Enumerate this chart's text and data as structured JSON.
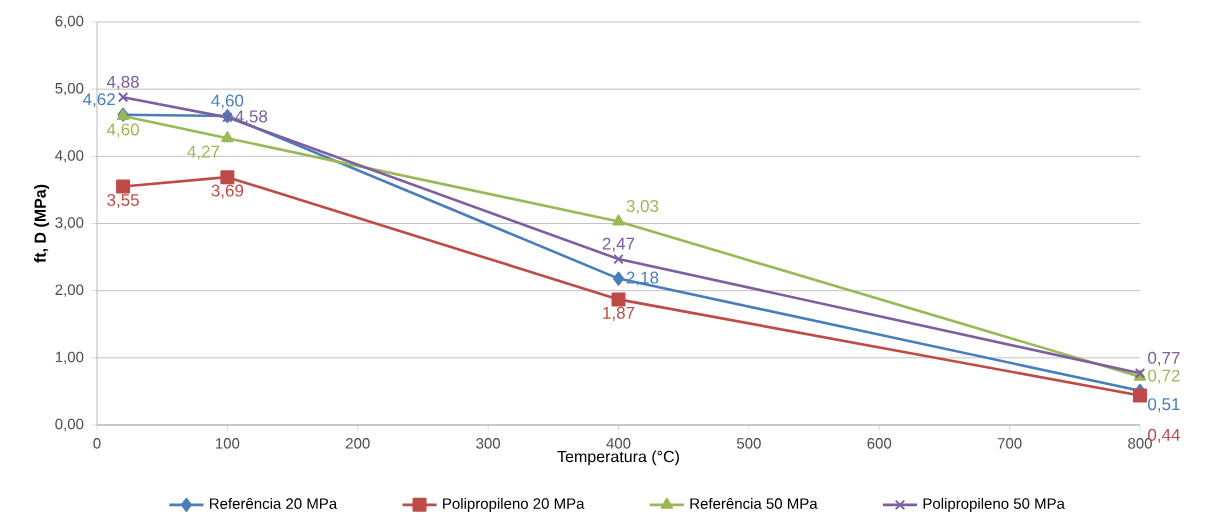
{
  "chart_data": {
    "type": "line",
    "xlabel": "Temperatura (°C)",
    "ylabel": "ft, D (MPa)",
    "x": [
      20,
      100,
      400,
      800
    ],
    "xlim": [
      0,
      800
    ],
    "xticks": [
      0,
      100,
      200,
      300,
      400,
      500,
      600,
      700,
      800
    ],
    "ylim": [
      0,
      6
    ],
    "yticks": [
      {
        "value": 0,
        "label": "0,00"
      },
      {
        "value": 1,
        "label": "1,00"
      },
      {
        "value": 2,
        "label": "2,00"
      },
      {
        "value": 3,
        "label": "3,00"
      },
      {
        "value": 4,
        "label": "4,00"
      },
      {
        "value": 5,
        "label": "5,00"
      },
      {
        "value": 6,
        "label": "6,00"
      }
    ],
    "grid": "y",
    "legend": "bottom",
    "series": [
      {
        "name": "Referência 20 MPa",
        "color": "#4a7ebb",
        "marker": "diamond",
        "values": [
          4.62,
          4.6,
          2.18,
          0.51
        ],
        "value_labels": [
          "4,62",
          "4,60",
          "2,18",
          "0,51"
        ]
      },
      {
        "name": "Polipropileno 20 MPa",
        "color": "#be4b48",
        "marker": "square",
        "values": [
          3.55,
          3.69,
          1.87,
          0.44
        ],
        "value_labels": [
          "3,55",
          "3,69",
          "1,87",
          "0,44"
        ]
      },
      {
        "name": "Referência 50 MPa",
        "color": "#98b954",
        "marker": "triangle",
        "values": [
          4.6,
          4.27,
          3.03,
          0.72
        ],
        "value_labels": [
          "4,60",
          "4,27",
          "3,03",
          "0,72"
        ]
      },
      {
        "name": "Polipropileno 50 MPa",
        "color": "#7d5fa0",
        "marker": "cross",
        "values": [
          4.88,
          4.58,
          2.47,
          0.77
        ],
        "value_labels": [
          "4,88",
          "4,58",
          "2,47",
          "0,77"
        ]
      }
    ]
  }
}
